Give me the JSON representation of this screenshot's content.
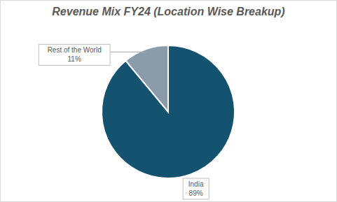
{
  "chart_data": {
    "type": "pie",
    "title": "Revenue Mix FY24 (Location Wise Breakup)",
    "categories": [
      "India",
      "Rest of the World"
    ],
    "values": [
      89,
      11
    ],
    "value_labels": [
      "89%",
      "11%"
    ],
    "colors": [
      "#13536F",
      "#8A9BAA"
    ],
    "data_labels": true
  }
}
